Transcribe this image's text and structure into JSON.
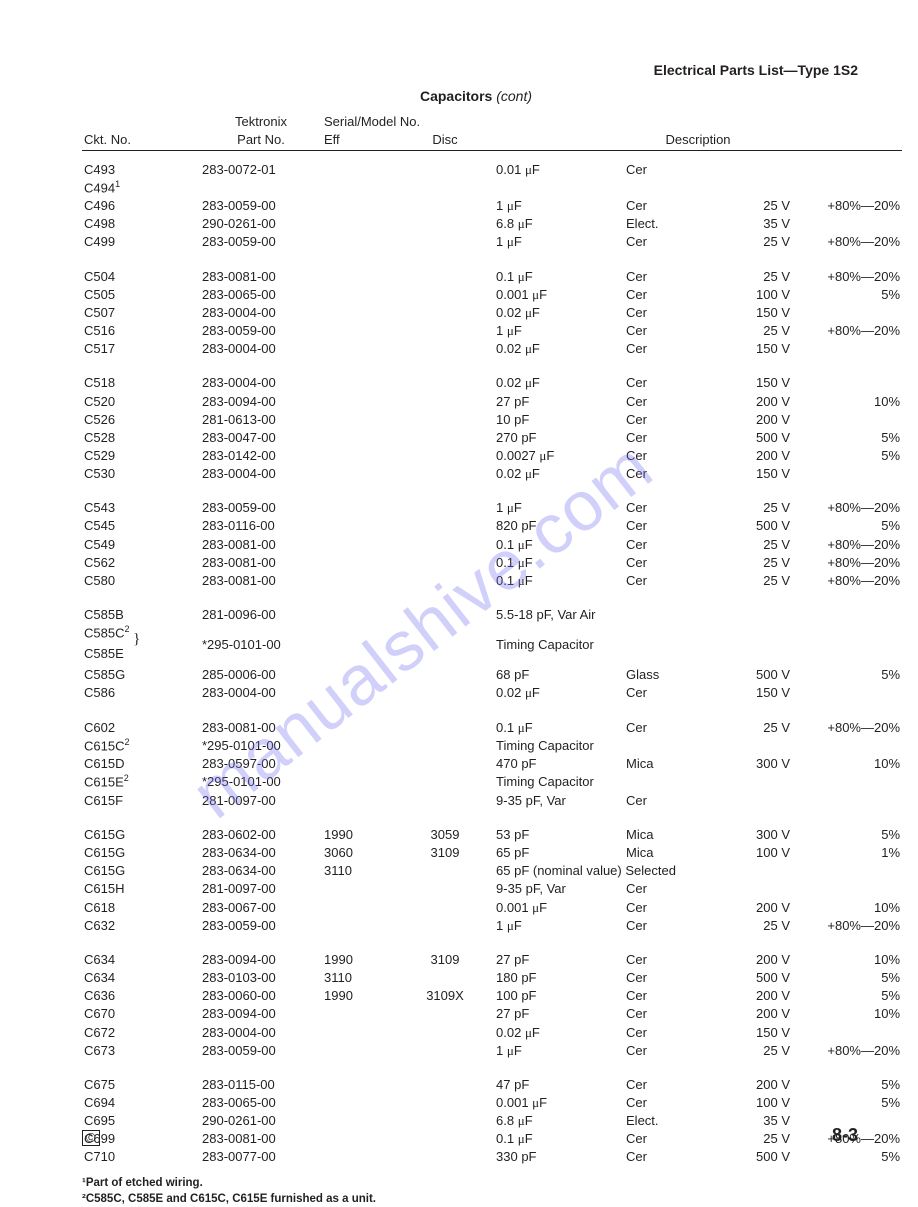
{
  "header_right": "Electrical Parts List—Type 1S2",
  "section_title_bold": "Capacitors",
  "section_title_italic": "(cont)",
  "colhead": {
    "tek1": "Tektronix",
    "tek2": "Part No.",
    "ser1": "Serial/Model No.",
    "eff": "Eff",
    "disc": "Disc",
    "ckt": "Ckt. No.",
    "desc": "Description"
  },
  "groups": [
    [
      {
        "ckt": "C493",
        "pn": "283-0072-01",
        "eff": "",
        "disc": "",
        "val": "0.01 μF",
        "typ": "Cer",
        "v": "",
        "tol": ""
      },
      {
        "ckt": "C494¹",
        "pn": "",
        "eff": "",
        "disc": "",
        "val": "",
        "typ": "",
        "v": "",
        "tol": ""
      },
      {
        "ckt": "C496",
        "pn": "283-0059-00",
        "eff": "",
        "disc": "",
        "val": "1 μF",
        "typ": "Cer",
        "v": "25 V",
        "tol": "+80%—20%"
      },
      {
        "ckt": "C498",
        "pn": "290-0261-00",
        "eff": "",
        "disc": "",
        "val": "6.8 μF",
        "typ": "Elect.",
        "v": "35 V",
        "tol": ""
      },
      {
        "ckt": "C499",
        "pn": "283-0059-00",
        "eff": "",
        "disc": "",
        "val": "1 μF",
        "typ": "Cer",
        "v": "25 V",
        "tol": "+80%—20%"
      }
    ],
    [
      {
        "ckt": "C504",
        "pn": "283-0081-00",
        "eff": "",
        "disc": "",
        "val": "0.1 μF",
        "typ": "Cer",
        "v": "25 V",
        "tol": "+80%—20%"
      },
      {
        "ckt": "C505",
        "pn": "283-0065-00",
        "eff": "",
        "disc": "",
        "val": "0.001 μF",
        "typ": "Cer",
        "v": "100 V",
        "tol": "5%"
      },
      {
        "ckt": "C507",
        "pn": "283-0004-00",
        "eff": "",
        "disc": "",
        "val": "0.02 μF",
        "typ": "Cer",
        "v": "150 V",
        "tol": ""
      },
      {
        "ckt": "C516",
        "pn": "283-0059-00",
        "eff": "",
        "disc": "",
        "val": "1 μF",
        "typ": "Cer",
        "v": "25 V",
        "tol": "+80%—20%"
      },
      {
        "ckt": "C517",
        "pn": "283-0004-00",
        "eff": "",
        "disc": "",
        "val": "0.02 μF",
        "typ": "Cer",
        "v": "150 V",
        "tol": ""
      }
    ],
    [
      {
        "ckt": "C518",
        "pn": "283-0004-00",
        "eff": "",
        "disc": "",
        "val": "0.02 μF",
        "typ": "Cer",
        "v": "150 V",
        "tol": ""
      },
      {
        "ckt": "C520",
        "pn": "283-0094-00",
        "eff": "",
        "disc": "",
        "val": "27 pF",
        "typ": "Cer",
        "v": "200 V",
        "tol": "10%"
      },
      {
        "ckt": "C526",
        "pn": "281-0613-00",
        "eff": "",
        "disc": "",
        "val": "10 pF",
        "typ": "Cer",
        "v": "200 V",
        "tol": ""
      },
      {
        "ckt": "C528",
        "pn": "283-0047-00",
        "eff": "",
        "disc": "",
        "val": "270 pF",
        "typ": "Cer",
        "v": "500 V",
        "tol": "5%"
      },
      {
        "ckt": "C529",
        "pn": "283-0142-00",
        "eff": "",
        "disc": "",
        "val": "0.0027 μF",
        "typ": "Cer",
        "v": "200 V",
        "tol": "5%"
      },
      {
        "ckt": "C530",
        "pn": "283-0004-00",
        "eff": "",
        "disc": "",
        "val": "0.02 μF",
        "typ": "Cer",
        "v": "150 V",
        "tol": ""
      }
    ],
    [
      {
        "ckt": "C543",
        "pn": "283-0059-00",
        "eff": "",
        "disc": "",
        "val": "1 μF",
        "typ": "Cer",
        "v": "25 V",
        "tol": "+80%—20%"
      },
      {
        "ckt": "C545",
        "pn": "283-0116-00",
        "eff": "",
        "disc": "",
        "val": "820 pF",
        "typ": "Cer",
        "v": "500 V",
        "tol": "5%"
      },
      {
        "ckt": "C549",
        "pn": "283-0081-00",
        "eff": "",
        "disc": "",
        "val": "0.1 μF",
        "typ": "Cer",
        "v": "25 V",
        "tol": "+80%—20%"
      },
      {
        "ckt": "C562",
        "pn": "283-0081-00",
        "eff": "",
        "disc": "",
        "val": "0.1 μF",
        "typ": "Cer",
        "v": "25 V",
        "tol": "+80%—20%"
      },
      {
        "ckt": "C580",
        "pn": "283-0081-00",
        "eff": "",
        "disc": "",
        "val": "0.1 μF",
        "typ": "Cer",
        "v": "25 V",
        "tol": "+80%—20%"
      }
    ],
    [
      {
        "ckt": "C585B",
        "pn": "281-0096-00",
        "eff": "",
        "disc": "",
        "val": "5.5-18 pF, Var Air",
        "typ": "",
        "v": "",
        "tol": ""
      },
      {
        "ckt": "C585C²",
        "pn": "",
        "eff": "",
        "disc": "",
        "val": "",
        "typ": "",
        "v": "",
        "tol": "",
        "brace_top": true
      },
      {
        "ckt": "C585E",
        "pn": "*295-0101-00",
        "eff": "",
        "disc": "",
        "val": "Timing Capacitor",
        "typ": "",
        "v": "",
        "tol": "",
        "brace_bot": true,
        "merge_pn": true
      },
      {
        "ckt": "C585G",
        "pn": "285-0006-00",
        "eff": "",
        "disc": "",
        "val": "68 pF",
        "typ": "Glass",
        "v": "500 V",
        "tol": "5%"
      },
      {
        "ckt": "C586",
        "pn": "283-0004-00",
        "eff": "",
        "disc": "",
        "val": "0.02 μF",
        "typ": "Cer",
        "v": "150 V",
        "tol": ""
      }
    ],
    [
      {
        "ckt": "C602",
        "pn": "283-0081-00",
        "eff": "",
        "disc": "",
        "val": "0.1 μF",
        "typ": "Cer",
        "v": "25 V",
        "tol": "+80%—20%"
      },
      {
        "ckt": "C615C²",
        "pn": "*295-0101-00",
        "eff": "",
        "disc": "",
        "val": "Timing Capacitor",
        "typ": "",
        "v": "",
        "tol": ""
      },
      {
        "ckt": "C615D",
        "pn": "283-0597-00",
        "eff": "",
        "disc": "",
        "val": "470 pF",
        "typ": "Mica",
        "v": "300 V",
        "tol": "10%"
      },
      {
        "ckt": "C615E²",
        "pn": "*295-0101-00",
        "eff": "",
        "disc": "",
        "val": "Timing Capacitor",
        "typ": "",
        "v": "",
        "tol": ""
      },
      {
        "ckt": "C615F",
        "pn": "281-0097-00",
        "eff": "",
        "disc": "",
        "val": "9-35 pF, Var",
        "typ": "Cer",
        "v": "",
        "tol": ""
      }
    ],
    [
      {
        "ckt": "C615G",
        "pn": "283-0602-00",
        "eff": "1990",
        "disc": "3059",
        "val": "53 pF",
        "typ": "Mica",
        "v": "300 V",
        "tol": "5%"
      },
      {
        "ckt": "C615G",
        "pn": "283-0634-00",
        "eff": "3060",
        "disc": "3109",
        "val": "65 pF",
        "typ": "Mica",
        "v": "100 V",
        "tol": "1%"
      },
      {
        "ckt": "C615G",
        "pn": "283-0634-00",
        "eff": "3110",
        "disc": "",
        "val": "65 pF     (nominal value) Selected",
        "typ": "",
        "v": "",
        "tol": "",
        "span": true
      },
      {
        "ckt": "C615H",
        "pn": "281-0097-00",
        "eff": "",
        "disc": "",
        "val": "9-35 pF, Var",
        "typ": "Cer",
        "v": "",
        "tol": ""
      },
      {
        "ckt": "C618",
        "pn": "283-0067-00",
        "eff": "",
        "disc": "",
        "val": "0.001 μF",
        "typ": "Cer",
        "v": "200 V",
        "tol": "10%"
      },
      {
        "ckt": "C632",
        "pn": "283-0059-00",
        "eff": "",
        "disc": "",
        "val": "1 μF",
        "typ": "Cer",
        "v": "25 V",
        "tol": "+80%—20%"
      }
    ],
    [
      {
        "ckt": "C634",
        "pn": "283-0094-00",
        "eff": "1990",
        "disc": "3109",
        "val": "27 pF",
        "typ": "Cer",
        "v": "200 V",
        "tol": "10%"
      },
      {
        "ckt": "C634",
        "pn": "283-0103-00",
        "eff": "3110",
        "disc": "",
        "val": "180 pF",
        "typ": "Cer",
        "v": "500 V",
        "tol": "5%"
      },
      {
        "ckt": "C636",
        "pn": "283-0060-00",
        "eff": "1990",
        "disc": "3109X",
        "val": "100 pF",
        "typ": "Cer",
        "v": "200 V",
        "tol": "5%"
      },
      {
        "ckt": "C670",
        "pn": "283-0094-00",
        "eff": "",
        "disc": "",
        "val": "27 pF",
        "typ": "Cer",
        "v": "200 V",
        "tol": "10%"
      },
      {
        "ckt": "C672",
        "pn": "283-0004-00",
        "eff": "",
        "disc": "",
        "val": "0.02 μF",
        "typ": "Cer",
        "v": "150 V",
        "tol": ""
      },
      {
        "ckt": "C673",
        "pn": "283-0059-00",
        "eff": "",
        "disc": "",
        "val": "1 μF",
        "typ": "Cer",
        "v": "25 V",
        "tol": "+80%—20%"
      }
    ],
    [
      {
        "ckt": "C675",
        "pn": "283-0115-00",
        "eff": "",
        "disc": "",
        "val": "47 pF",
        "typ": "Cer",
        "v": "200 V",
        "tol": "5%"
      },
      {
        "ckt": "C694",
        "pn": "283-0065-00",
        "eff": "",
        "disc": "",
        "val": "0.001 μF",
        "typ": "Cer",
        "v": "100 V",
        "tol": "5%"
      },
      {
        "ckt": "C695",
        "pn": "290-0261-00",
        "eff": "",
        "disc": "",
        "val": "6.8 μF",
        "typ": "Elect.",
        "v": "35 V",
        "tol": ""
      },
      {
        "ckt": "C699",
        "pn": "283-0081-00",
        "eff": "",
        "disc": "",
        "val": "0.1 μF",
        "typ": "Cer",
        "v": "25 V",
        "tol": "+80%—20%"
      },
      {
        "ckt": "C710",
        "pn": "283-0077-00",
        "eff": "",
        "disc": "",
        "val": "330 pF",
        "typ": "Cer",
        "v": "500 V",
        "tol": "5%"
      }
    ]
  ],
  "footnote1": "¹Part of etched wiring.",
  "footnote2": "²C585C, C585E and C615C, C615E furnished as a unit.",
  "page_number": "8-3",
  "copyright_mark": "©",
  "watermark": "manualshive.com",
  "colors": {
    "text": "#231f20",
    "wm": "#7070f0",
    "bg": "#ffffff"
  }
}
